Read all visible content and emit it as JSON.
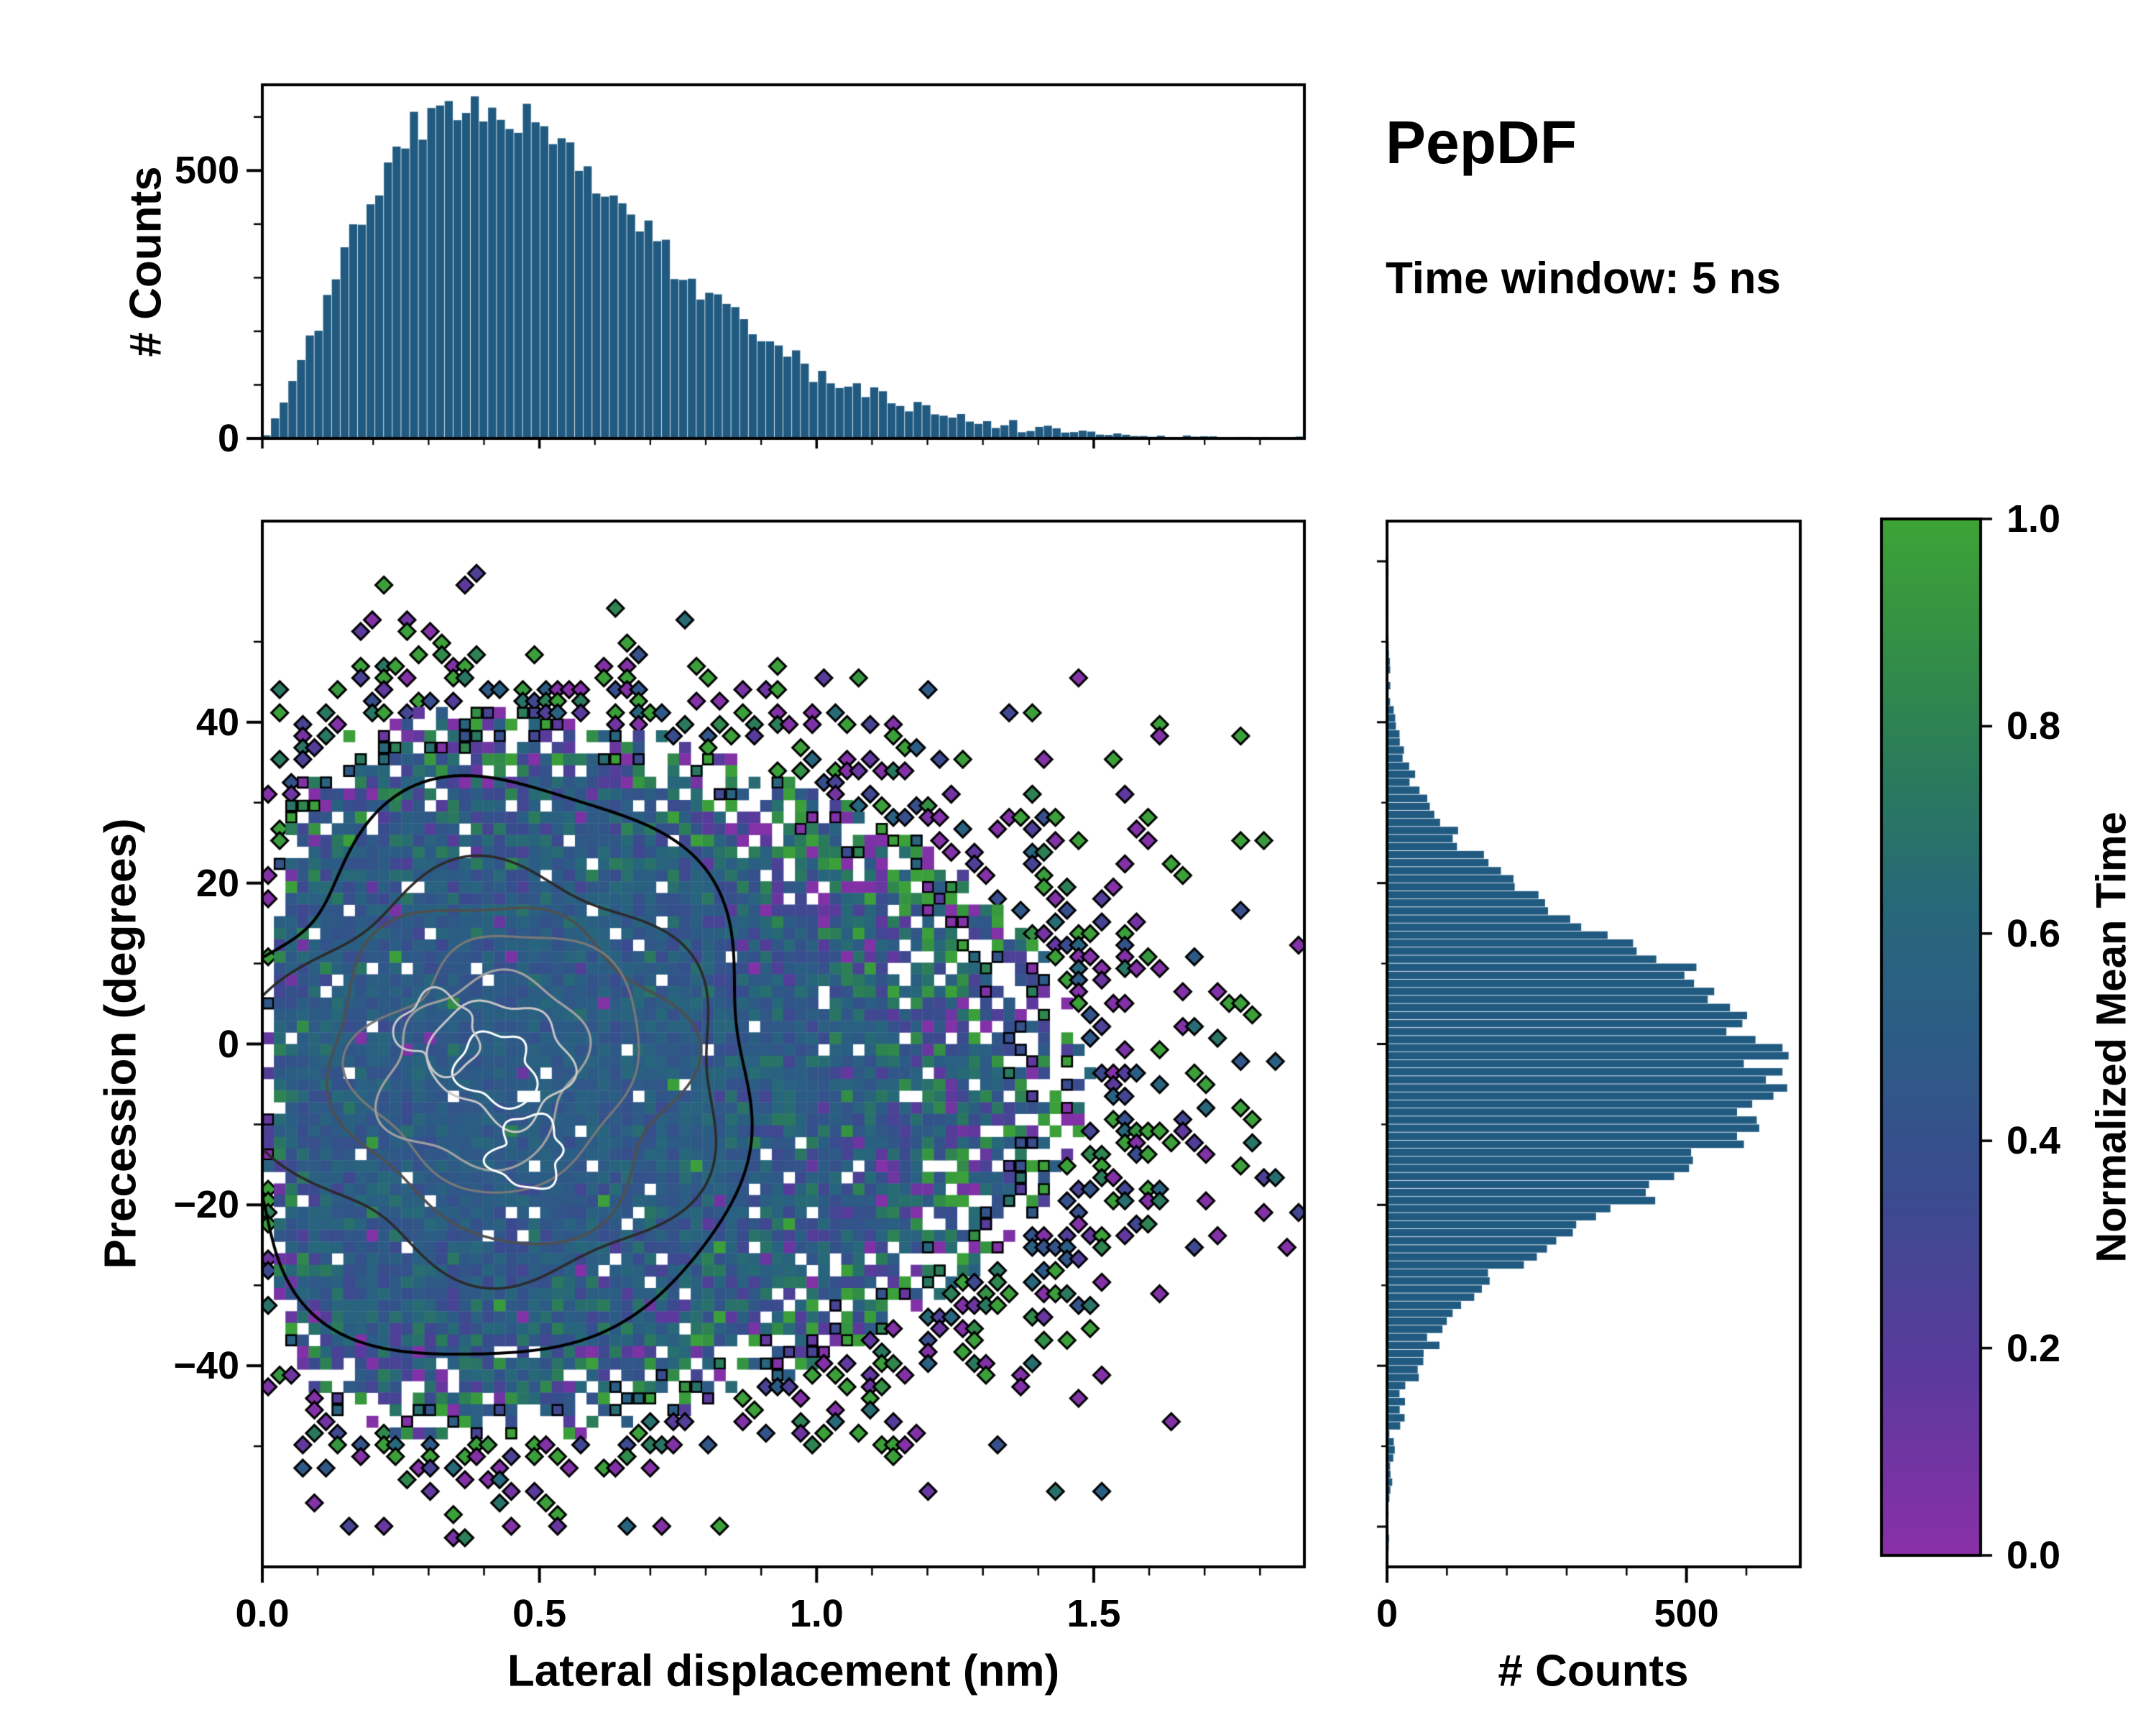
{
  "title": "PepDF",
  "subtitle": "Time window: 5 ns",
  "colors": {
    "background": "#ffffff",
    "bar": "#215a80",
    "spine": "#000000",
    "contour_levels": [
      "#000000",
      "#2b2b2b",
      "#4f4f4f",
      "#787878",
      "#a0a0a0",
      "#c8c8c8",
      "#ffffff"
    ],
    "colormap_stops": [
      {
        "t": 0.0,
        "color": "#8a2fa8"
      },
      {
        "t": 0.18,
        "color": "#5a3a9c"
      },
      {
        "t": 0.35,
        "color": "#3a4b8e"
      },
      {
        "t": 0.5,
        "color": "#2c5c85"
      },
      {
        "t": 0.62,
        "color": "#27677b"
      },
      {
        "t": 0.75,
        "color": "#2a7a5c"
      },
      {
        "t": 0.88,
        "color": "#338f45"
      },
      {
        "t": 1.0,
        "color": "#3da436"
      }
    ]
  },
  "chart_data": [
    {
      "id": "top_histogram",
      "type": "bar",
      "orientation": "vertical",
      "ylabel": "# Counts",
      "xlim": [
        0,
        1.88
      ],
      "ylim": [
        0,
        660
      ],
      "bins": 120,
      "yticks": [
        {
          "v": 0,
          "label": "0"
        },
        {
          "v": 500,
          "label": "500"
        }
      ],
      "distribution": {
        "kind": "displacement-chi",
        "shape": 1.3,
        "scale": 0.42,
        "power": 1.5,
        "peak_counts": 620,
        "peak_x": 0.38
      },
      "seed": 11
    },
    {
      "id": "joint_heatmap",
      "type": "heatmap",
      "xlabel": "Lateral displacement (nm)",
      "ylabel": "Precession (degrees)",
      "color_variable": "Normalized Mean Time",
      "xlim": [
        0,
        1.88
      ],
      "ylim": [
        -65,
        65
      ],
      "nx": 90,
      "ny": 90,
      "xticks": [
        {
          "v": 0,
          "label": "0.0"
        },
        {
          "v": 0.5,
          "label": "0.5"
        },
        {
          "v": 1.0,
          "label": "1.0"
        },
        {
          "v": 1.5,
          "label": "1.5"
        }
      ],
      "yticks": [
        {
          "v": -40,
          "label": "−40"
        },
        {
          "v": -20,
          "label": "−20"
        },
        {
          "v": 0,
          "label": "0"
        },
        {
          "v": 20,
          "label": "20"
        },
        {
          "v": 40,
          "label": "40"
        }
      ],
      "center_value": 0.5,
      "peak_bin_counts": 35,
      "x_distribution": {
        "kind": "displacement-chi",
        "shape": 1.3,
        "scale": 0.42,
        "power": 1.5
      },
      "y_distribution": {
        "kind": "gaussian",
        "mean": -4,
        "sigma": 16
      },
      "contours": {
        "center_x": 0.42,
        "center_y": -3,
        "levels": 7,
        "style": "grayscale-black-outer-white-inner"
      },
      "seed": 7
    },
    {
      "id": "right_histogram",
      "type": "bar",
      "orientation": "horizontal",
      "xlabel": "# Counts",
      "xlim": [
        0,
        690
      ],
      "ylim": [
        -65,
        65
      ],
      "bins": 130,
      "xticks": [
        {
          "v": 0,
          "label": "0"
        },
        {
          "v": 500,
          "label": "500"
        }
      ],
      "distribution": {
        "kind": "gaussian",
        "mean": -4,
        "sigma": 16,
        "peak_counts": 650
      },
      "seed": 23
    },
    {
      "id": "colorbar",
      "label": "Normalized Mean Time",
      "lim": [
        0,
        1
      ],
      "ticks": [
        {
          "v": 0.0,
          "label": "0.0"
        },
        {
          "v": 0.2,
          "label": "0.2"
        },
        {
          "v": 0.4,
          "label": "0.4"
        },
        {
          "v": 0.6,
          "label": "0.6"
        },
        {
          "v": 0.8,
          "label": "0.8"
        },
        {
          "v": 1.0,
          "label": "1.0"
        }
      ]
    }
  ]
}
